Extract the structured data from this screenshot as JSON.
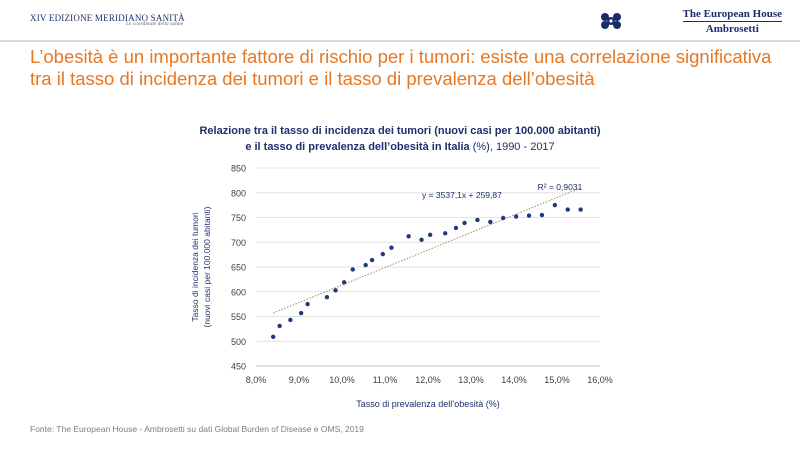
{
  "header": {
    "left_brand": "XIV EDIZIONE MERIDIANO SANITÀ",
    "left_brand_sub": "Le coordinate della salute",
    "right_brand_line1": "The European House",
    "right_brand_line2": "Ambrosetti"
  },
  "slide_title": "L’obesità è un importante fattore di rischio per i tumori: esiste una correlazione significativa tra il tasso di incidenza dei tumori e il tasso di prevalenza dell’obesità",
  "chart_title_line1": "Relazione  tra il tasso di incidenza  dei tumori  (nuovi casi per 100.000  abitanti)",
  "chart_title_line2_bold": "e il tasso di prevalenza dell’obesità  in Italia",
  "chart_title_line2_rest": "(%), 1990 - 2017",
  "source": "Fonte: The European House - Ambrosetti su dati Global Burden of Disease e OMS, 2019",
  "chart_data": {
    "type": "scatter",
    "title": "Relazione tra il tasso di incidenza dei tumori (nuovi casi per 100.000 abitanti) e il tasso di prevalenza dell’obesità in Italia (%), 1990 - 2017",
    "xlabel": "Tasso di prevalenza dell’obesità (%)",
    "ylabel_line1": "Tasso di incidenza dei tumori",
    "ylabel_line2": "(nuovi casi per 100.000  abitanti)",
    "xlim": [
      0.08,
      0.16
    ],
    "ylim": [
      450,
      850
    ],
    "x_ticks": [
      0.08,
      0.09,
      0.1,
      0.11,
      0.12,
      0.13,
      0.14,
      0.15,
      0.16
    ],
    "x_tick_labels": [
      "8,0%",
      "9,0%",
      "10,0%",
      "11,0%",
      "12,0%",
      "13,0%",
      "14,0%",
      "15,0%",
      "16,0%"
    ],
    "y_ticks": [
      450,
      500,
      550,
      600,
      650,
      700,
      750,
      800,
      850
    ],
    "y_tick_labels": [
      "450",
      "500",
      "550",
      "600",
      "650",
      "700",
      "750",
      "800",
      "850"
    ],
    "grid": "horizontal",
    "points": [
      {
        "x": 0.084,
        "y": 509
      },
      {
        "x": 0.0855,
        "y": 531
      },
      {
        "x": 0.088,
        "y": 543
      },
      {
        "x": 0.0905,
        "y": 557
      },
      {
        "x": 0.092,
        "y": 575
      },
      {
        "x": 0.0965,
        "y": 589
      },
      {
        "x": 0.0985,
        "y": 603
      },
      {
        "x": 0.1005,
        "y": 619
      },
      {
        "x": 0.1025,
        "y": 645
      },
      {
        "x": 0.1055,
        "y": 654
      },
      {
        "x": 0.107,
        "y": 664
      },
      {
        "x": 0.1095,
        "y": 676
      },
      {
        "x": 0.1115,
        "y": 689
      },
      {
        "x": 0.1155,
        "y": 712
      },
      {
        "x": 0.1185,
        "y": 705
      },
      {
        "x": 0.1205,
        "y": 715
      },
      {
        "x": 0.124,
        "y": 718
      },
      {
        "x": 0.1265,
        "y": 729
      },
      {
        "x": 0.1285,
        "y": 739
      },
      {
        "x": 0.1315,
        "y": 745
      },
      {
        "x": 0.1345,
        "y": 741
      },
      {
        "x": 0.1375,
        "y": 749
      },
      {
        "x": 0.1405,
        "y": 752
      },
      {
        "x": 0.1435,
        "y": 754
      },
      {
        "x": 0.1465,
        "y": 755
      },
      {
        "x": 0.1495,
        "y": 775
      },
      {
        "x": 0.1525,
        "y": 766
      },
      {
        "x": 0.1555,
        "y": 766
      }
    ],
    "trendline": {
      "slope": 3537.1,
      "intercept": 259.87,
      "x_range": [
        0.084,
        0.1555
      ],
      "style": "dotted"
    },
    "equation_label": "y = 3537,1x  + 259,87",
    "r2_label": "R² = 0,9031",
    "colors": {
      "points": "#1f3a7a",
      "trend": "#a09058",
      "grid": "#e3e3e3",
      "text": "#1f2f6b"
    }
  }
}
